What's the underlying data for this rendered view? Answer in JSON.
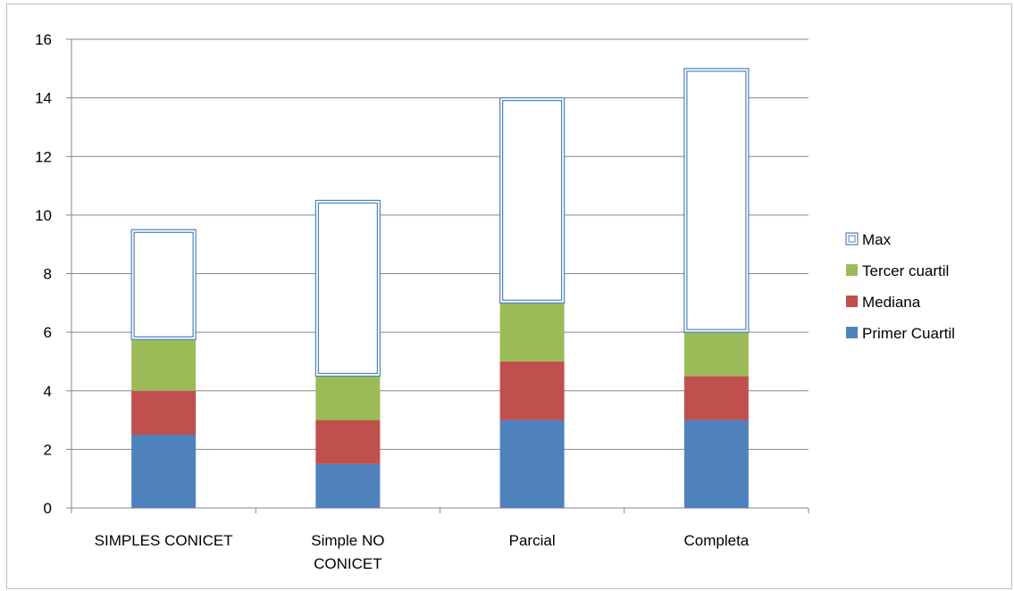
{
  "chart_data": {
    "type": "bar",
    "stacked": true,
    "categories": [
      "SIMPLES CONICET",
      "Simple NO CONICET",
      "Parcial",
      "Completa"
    ],
    "category_lines": [
      [
        "SIMPLES CONICET"
      ],
      [
        "Simple NO",
        "CONICET"
      ],
      [
        "Parcial"
      ],
      [
        "Completa"
      ]
    ],
    "series": [
      {
        "name": "Primer Cuartil",
        "values": [
          2.5,
          1.5,
          3,
          3
        ],
        "color": "#4f81bd"
      },
      {
        "name": "Mediana",
        "values": [
          1.5,
          1.5,
          2,
          1.5
        ],
        "color": "#c0504d"
      },
      {
        "name": "Tercer cuartil",
        "values": [
          1.75,
          1.5,
          2,
          1.5
        ],
        "color": "#9bbb59"
      },
      {
        "name": "Max",
        "values": [
          3.75,
          6,
          7,
          9
        ],
        "color": "#4f81bd",
        "style": "outline"
      }
    ],
    "legend_order": [
      "Max",
      "Tercer cuartil",
      "Mediana",
      "Primer Cuartil"
    ],
    "legend_position": "right",
    "ylim": [
      0,
      16
    ],
    "yticks": [
      0,
      2,
      4,
      6,
      8,
      10,
      12,
      14,
      16
    ],
    "grid": true,
    "title": "",
    "xlabel": "",
    "ylabel": ""
  }
}
